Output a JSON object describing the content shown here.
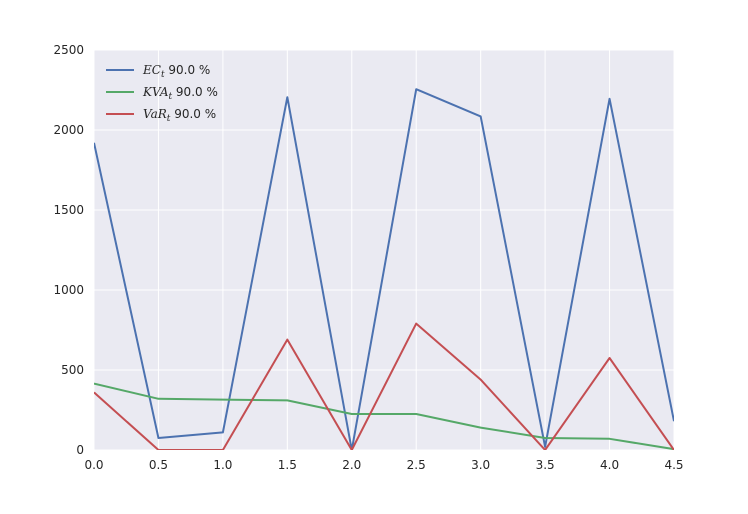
{
  "chart_data": {
    "type": "line",
    "title": "",
    "xlabel": "",
    "ylabel": "",
    "xlim": [
      0.0,
      4.5
    ],
    "ylim": [
      0,
      2500
    ],
    "grid": true,
    "legend_position": "top-left",
    "background": "#eaeaf2",
    "x": [
      0.0,
      0.5,
      1.0,
      1.5,
      2.0,
      2.5,
      3.0,
      3.5,
      4.0,
      4.5
    ],
    "x_ticks": [
      "0.0",
      "0.5",
      "1.0",
      "1.5",
      "2.0",
      "2.5",
      "3.0",
      "3.5",
      "4.0",
      "4.5"
    ],
    "y_ticks": [
      "0",
      "500",
      "1000",
      "1500",
      "2000",
      "2500"
    ],
    "series": [
      {
        "name": "EC_t 90.0 %",
        "name_math": "EC",
        "name_sub": "t",
        "name_rest": " 90.0 %",
        "color": "#4c72b0",
        "values": [
          1920,
          75,
          110,
          2205,
          0,
          2255,
          2085,
          20,
          2195,
          180
        ]
      },
      {
        "name": "KVA_t 90.0 %",
        "name_math": "KVA",
        "name_sub": "t",
        "name_rest": " 90.0 %",
        "color": "#55a868",
        "values": [
          415,
          320,
          315,
          310,
          225,
          225,
          140,
          75,
          70,
          5
        ]
      },
      {
        "name": "VaR_t 90.0 %",
        "name_math": "VaR",
        "name_sub": "t",
        "name_rest": " 90.0 %",
        "color": "#c44e52",
        "values": [
          360,
          0,
          0,
          690,
          0,
          790,
          440,
          0,
          575,
          0
        ]
      }
    ]
  }
}
